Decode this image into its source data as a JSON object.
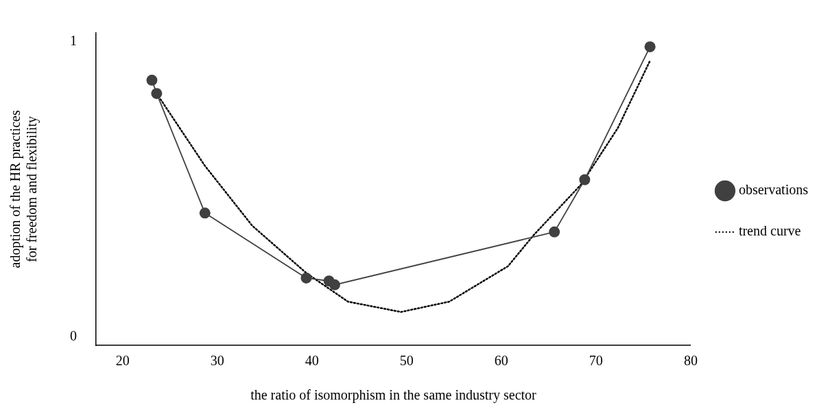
{
  "chart_data": {
    "type": "line",
    "xlabel": "the ratio of isomorphism in the same industry sector",
    "ylabel": "adoption of the HR practices\nfor freedom and flexibility",
    "xlim": [
      17.2,
      80
    ],
    "xticks": [
      20,
      30,
      40,
      50,
      60,
      70,
      80
    ],
    "ylim": [
      -0.028,
      1.03
    ],
    "yticks": [
      0,
      1
    ],
    "grid": false,
    "legend": "right",
    "series": [
      {
        "name": "observations",
        "color": "#404040",
        "marker": "circle",
        "line_style": "solid",
        "x": [
          23.1,
          23.6,
          28.7,
          39.4,
          41.8,
          42.4,
          65.6,
          68.8,
          75.7
        ],
        "values": [
          0.87,
          0.825,
          0.42,
          0.2,
          0.19,
          0.177,
          0.356,
          0.533,
          0.983
        ]
      },
      {
        "name": "trend curve",
        "color": "#000000",
        "marker": "none",
        "line_style": "dotted",
        "x": [
          23.6,
          28.7,
          33.7,
          39.4,
          43.8,
          49.4,
          54.5,
          60.7,
          63.4,
          68.4,
          72.3,
          75.7
        ],
        "values": [
          0.825,
          0.58,
          0.377,
          0.217,
          0.12,
          0.085,
          0.12,
          0.24,
          0.345,
          0.516,
          0.708,
          0.936
        ]
      }
    ]
  }
}
